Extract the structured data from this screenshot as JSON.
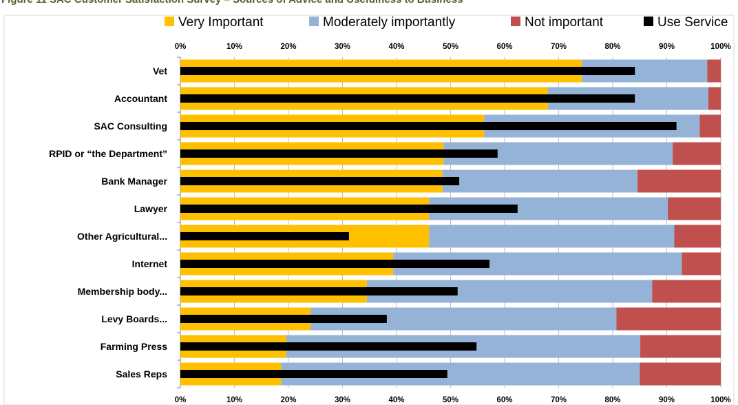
{
  "figure_title": "Figure 11 SAC Customer Satisfaction Survey – Sources of Advice and Usefulness to Business",
  "colors": {
    "very_important": "#ffc000",
    "moderately": "#95b3d7",
    "not_important": "#c0504d",
    "use_service": "#000000",
    "grid": "#bfbfbf"
  },
  "chart_data": {
    "type": "bar",
    "orientation": "horizontal",
    "stacked": "100%",
    "title": "",
    "xlabel": "",
    "ylabel": "",
    "xlim": [
      0,
      100
    ],
    "x_ticks": [
      "0%",
      "10%",
      "20%",
      "30%",
      "40%",
      "50%",
      "60%",
      "70%",
      "80%",
      "90%",
      "100%"
    ],
    "grid": true,
    "legend_position": "top",
    "categories": [
      "Vet",
      "Accountant",
      "SAC Consulting",
      "RPID or “the Department”",
      "Bank Manager",
      "Lawyer",
      "Other Agricultural...",
      "Internet",
      "Membership body...",
      "Levy Boards...",
      "Farming Press",
      "Sales Reps"
    ],
    "series": [
      {
        "name": "Very Important",
        "values": [
          74.3,
          68.0,
          56.2,
          48.7,
          48.5,
          46.0,
          46.0,
          39.4,
          34.5,
          24.1,
          19.6,
          18.6
        ]
      },
      {
        "name": "Moderately importantly",
        "values": [
          23.2,
          29.7,
          39.9,
          42.4,
          36.1,
          44.2,
          45.4,
          53.4,
          52.8,
          56.6,
          65.5,
          66.4
        ]
      },
      {
        "name": "Not important",
        "values": [
          2.5,
          2.3,
          3.9,
          8.9,
          15.4,
          9.8,
          8.6,
          7.2,
          12.7,
          19.3,
          14.9,
          15.0
        ]
      },
      {
        "name": "Use Service",
        "values": [
          84.1,
          84.1,
          91.8,
          58.7,
          51.6,
          62.4,
          31.2,
          57.2,
          51.3,
          38.2,
          54.8,
          49.4
        ]
      }
    ]
  }
}
